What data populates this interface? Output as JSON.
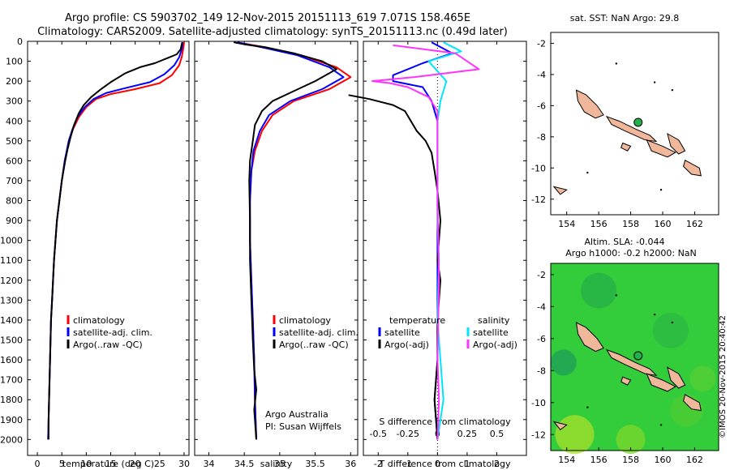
{
  "title_line1": "Argo profile: CS 5903702_149 12-Nov-2015 20151113_619 7.071S 158.465E",
  "title_line2": "Climatology: CARS2009. Satellite-adjusted climatology: synTS_20151113.nc (0.49d later)",
  "depth_ticks": [
    "0",
    "100",
    "200",
    "300",
    "400",
    "500",
    "600",
    "700",
    "800",
    "900",
    "1000",
    "1100",
    "1200",
    "1300",
    "1400",
    "1500",
    "1600",
    "1700",
    "1800",
    "1900",
    "2000"
  ],
  "colors": {
    "climatology": "#ff0000",
    "satellite": "#0000ff",
    "argo": "#000000",
    "sat_salinity": "#00e5ff",
    "argo_salinity": "#ff33ff",
    "land": "#f0b79a",
    "coast": "#000000",
    "marker": "#22b24c",
    "sla_bg": "#33cc3a"
  },
  "chart_data": [
    {
      "type": "line",
      "xlabel": "temperature (deg C)",
      "xticks": [
        "0",
        "5",
        "10",
        "15",
        "20",
        "25",
        "30"
      ],
      "xlim": [
        -2,
        31
      ],
      "ylim": [
        2080,
        0
      ],
      "legend": [
        "climatology",
        "satellite-adj. clim.",
        "Argo(..raw -QC)"
      ],
      "series": [
        {
          "name": "climatology",
          "points": [
            [
              30,
              5
            ],
            [
              29.8,
              40
            ],
            [
              29.5,
              80
            ],
            [
              29,
              120
            ],
            [
              27.5,
              170
            ],
            [
              25,
              210
            ],
            [
              20,
              240
            ],
            [
              15,
              265
            ],
            [
              12,
              290
            ],
            [
              10,
              330
            ],
            [
              8.5,
              380
            ],
            [
              7.3,
              440
            ],
            [
              6.5,
              500
            ],
            [
              5.6,
              600
            ],
            [
              5,
              700
            ],
            [
              4.5,
              800
            ],
            [
              4,
              900
            ],
            [
              3.7,
              1000
            ],
            [
              3.4,
              1100
            ],
            [
              3.2,
              1200
            ],
            [
              3,
              1300
            ],
            [
              2.8,
              1400
            ],
            [
              2.7,
              1500
            ],
            [
              2.6,
              1600
            ],
            [
              2.5,
              1700
            ],
            [
              2.4,
              1800
            ],
            [
              2.3,
              1900
            ],
            [
              2.2,
              2000
            ]
          ]
        },
        {
          "name": "satellite-adj. clim.",
          "points": [
            [
              29.7,
              5
            ],
            [
              29.5,
              40
            ],
            [
              29,
              80
            ],
            [
              28,
              120
            ],
            [
              26,
              165
            ],
            [
              23,
              205
            ],
            [
              18,
              235
            ],
            [
              14,
              260
            ],
            [
              11.5,
              290
            ],
            [
              9.7,
              330
            ],
            [
              8.2,
              380
            ],
            [
              7.2,
              440
            ],
            [
              6.4,
              500
            ],
            [
              5.6,
              600
            ],
            [
              5,
              700
            ],
            [
              4.5,
              800
            ],
            [
              4,
              900
            ],
            [
              3.7,
              1000
            ],
            [
              3.4,
              1100
            ],
            [
              3.2,
              1200
            ],
            [
              3,
              1300
            ],
            [
              2.8,
              1400
            ],
            [
              2.7,
              1500
            ],
            [
              2.6,
              1600
            ],
            [
              2.5,
              1700
            ],
            [
              2.4,
              1800
            ],
            [
              2.3,
              1900
            ],
            [
              2.2,
              2000
            ]
          ]
        },
        {
          "name": "Argo(..raw -QC)",
          "points": [
            [
              29.6,
              5
            ],
            [
              29.3,
              40
            ],
            [
              28.5,
              65
            ],
            [
              27,
              80
            ],
            [
              24,
              110
            ],
            [
              21,
              130
            ],
            [
              18,
              160
            ],
            [
              15,
              205
            ],
            [
              13,
              240
            ],
            [
              11,
              280
            ],
            [
              9.5,
              320
            ],
            [
              8.5,
              360
            ],
            [
              7.5,
              420
            ],
            [
              6.8,
              480
            ],
            [
              6.2,
              540
            ],
            [
              5.7,
              600
            ],
            [
              5,
              700
            ],
            [
              4.5,
              800
            ],
            [
              4,
              900
            ],
            [
              3.7,
              1000
            ],
            [
              3.4,
              1100
            ],
            [
              3.2,
              1200
            ],
            [
              3,
              1300
            ],
            [
              2.8,
              1400
            ],
            [
              2.7,
              1500
            ],
            [
              2.6,
              1600
            ],
            [
              2.5,
              1700
            ],
            [
              2.4,
              1800
            ],
            [
              2.3,
              1900
            ],
            [
              2.3,
              2000
            ]
          ]
        }
      ]
    },
    {
      "type": "line",
      "xlabel": "salinity",
      "xticks": [
        "34",
        "34.5",
        "35",
        "35.5",
        "36"
      ],
      "xlim": [
        33.8,
        36.1
      ],
      "ylim": [
        2080,
        0
      ],
      "legend": [
        "climatology",
        "satellite-adj. clim.",
        "Argo(..raw -QC)"
      ],
      "annotation": [
        "Argo Australia",
        "PI: Susan Wijffels"
      ],
      "series": [
        {
          "name": "climatology",
          "points": [
            [
              34.4,
              5
            ],
            [
              34.8,
              30
            ],
            [
              35.3,
              70
            ],
            [
              35.8,
              130
            ],
            [
              36,
              180
            ],
            [
              35.7,
              240
            ],
            [
              35.2,
              300
            ],
            [
              34.9,
              370
            ],
            [
              34.75,
              450
            ],
            [
              34.65,
              550
            ],
            [
              34.6,
              650
            ],
            [
              34.58,
              800
            ],
            [
              34.58,
              1000
            ],
            [
              34.6,
              1200
            ],
            [
              34.62,
              1400
            ],
            [
              34.64,
              1600
            ],
            [
              34.65,
              1800
            ],
            [
              34.67,
              2000
            ]
          ]
        },
        {
          "name": "satellite-adj. clim.",
          "points": [
            [
              34.4,
              5
            ],
            [
              34.75,
              30
            ],
            [
              35.25,
              70
            ],
            [
              35.7,
              130
            ],
            [
              35.9,
              180
            ],
            [
              35.6,
              240
            ],
            [
              35.15,
              300
            ],
            [
              34.85,
              370
            ],
            [
              34.72,
              450
            ],
            [
              34.63,
              550
            ],
            [
              34.6,
              650
            ],
            [
              34.58,
              800
            ],
            [
              34.58,
              1000
            ],
            [
              34.6,
              1200
            ],
            [
              34.62,
              1400
            ],
            [
              34.64,
              1600
            ],
            [
              34.65,
              1800
            ],
            [
              34.67,
              2000
            ]
          ]
        },
        {
          "name": "Argo(..raw -QC)",
          "points": [
            [
              34.35,
              5
            ],
            [
              34.5,
              15
            ],
            [
              34.8,
              30
            ],
            [
              35.2,
              60
            ],
            [
              35.6,
              100
            ],
            [
              35.8,
              140
            ],
            [
              35.5,
              200
            ],
            [
              35.2,
              250
            ],
            [
              34.9,
              300
            ],
            [
              34.75,
              350
            ],
            [
              34.65,
              420
            ],
            [
              34.62,
              500
            ],
            [
              34.58,
              600
            ],
            [
              34.57,
              700
            ],
            [
              34.58,
              900
            ],
            [
              34.58,
              1100
            ],
            [
              34.6,
              1300
            ],
            [
              34.62,
              1500
            ],
            [
              34.64,
              1650
            ],
            [
              34.67,
              1750
            ],
            [
              34.64,
              1850
            ],
            [
              34.67,
              2000
            ]
          ]
        }
      ]
    },
    {
      "type": "line",
      "xlabel": "T difference from climatology",
      "xticks": [
        "-2",
        "-1",
        "0",
        "1",
        "2"
      ],
      "xlim": [
        -2.5,
        3.0
      ],
      "ylim": [
        2080,
        0
      ],
      "top_label": "S difference from climatology",
      "top_ticks": [
        "-0.5",
        "-0.25",
        "0",
        "0.25",
        "0.5"
      ],
      "legend": [
        "temperature",
        "satellite",
        "Argo(-adj)",
        "salinity",
        "satellite",
        "Argo(-adj)"
      ],
      "series": [
        {
          "name": "satellite",
          "points": [
            [
              -0.2,
              5
            ],
            [
              0.5,
              60
            ],
            [
              -0.5,
              110
            ],
            [
              -1.5,
              170
            ],
            [
              -1.5,
              200
            ],
            [
              -0.5,
              230
            ],
            [
              -0.2,
              300
            ],
            [
              0,
              400
            ],
            [
              0,
              700
            ],
            [
              0,
              1200
            ],
            [
              0,
              1600
            ],
            [
              -0.1,
              1800
            ],
            [
              0,
              2000
            ]
          ]
        },
        {
          "name": "Argo(-adj)",
          "points": [
            [
              -3,
              270
            ],
            [
              -2.3,
              290
            ],
            [
              -1.5,
              320
            ],
            [
              -1.1,
              350
            ],
            [
              -0.9,
              400
            ],
            [
              -0.7,
              450
            ],
            [
              -0.4,
              500
            ],
            [
              -0.2,
              560
            ],
            [
              -0.1,
              650
            ],
            [
              0,
              750
            ],
            [
              0.1,
              900
            ],
            [
              0,
              1100
            ],
            [
              0.1,
              1200
            ],
            [
              0,
              1400
            ],
            [
              0,
              1600
            ],
            [
              -0.1,
              1800
            ],
            [
              0,
              2000
            ]
          ]
        },
        {
          "name": "satellite",
          "points": [
            [
              0.2,
              5
            ],
            [
              0.8,
              50
            ],
            [
              -0.3,
              100
            ],
            [
              0.3,
              200
            ],
            [
              0.1,
              300
            ],
            [
              0,
              400
            ],
            [
              0,
              700
            ],
            [
              0,
              900
            ],
            [
              0.05,
              1100
            ],
            [
              0,
              1400
            ],
            [
              0.1,
              1600
            ],
            [
              0.2,
              1800
            ],
            [
              0,
              2000
            ]
          ]
        },
        {
          "name": "Argo(-adj)",
          "points": [
            [
              -1.5,
              20
            ],
            [
              0.6,
              60
            ],
            [
              1.4,
              140
            ],
            [
              -0.8,
              180
            ],
            [
              -2.2,
              200
            ],
            [
              -1.6,
              210
            ],
            [
              -1,
              230
            ],
            [
              -0.3,
              280
            ],
            [
              0,
              350
            ],
            [
              0,
              800
            ],
            [
              0.05,
              1200
            ],
            [
              0,
              1600
            ],
            [
              0.05,
              1800
            ],
            [
              0,
              2000
            ]
          ]
        }
      ]
    }
  ],
  "map1": {
    "title": "sat. SST: NaN Argo: 29.8",
    "xticks": [
      "154",
      "156",
      "158",
      "160",
      "162"
    ],
    "yticks": [
      "-2",
      "-4",
      "-6",
      "-8",
      "-10",
      "-12"
    ]
  },
  "map2": {
    "title_line1": "Altim. SLA: -0.044",
    "title_line2": "Argo h1000: -0.2 h2000: NaN",
    "xticks": [
      "154",
      "156",
      "158",
      "160",
      "162"
    ],
    "yticks": [
      "-2",
      "-4",
      "-6",
      "-8",
      "-10",
      "-12"
    ]
  },
  "credit": "©IMOS 20-Nov-2015 20:40:42"
}
